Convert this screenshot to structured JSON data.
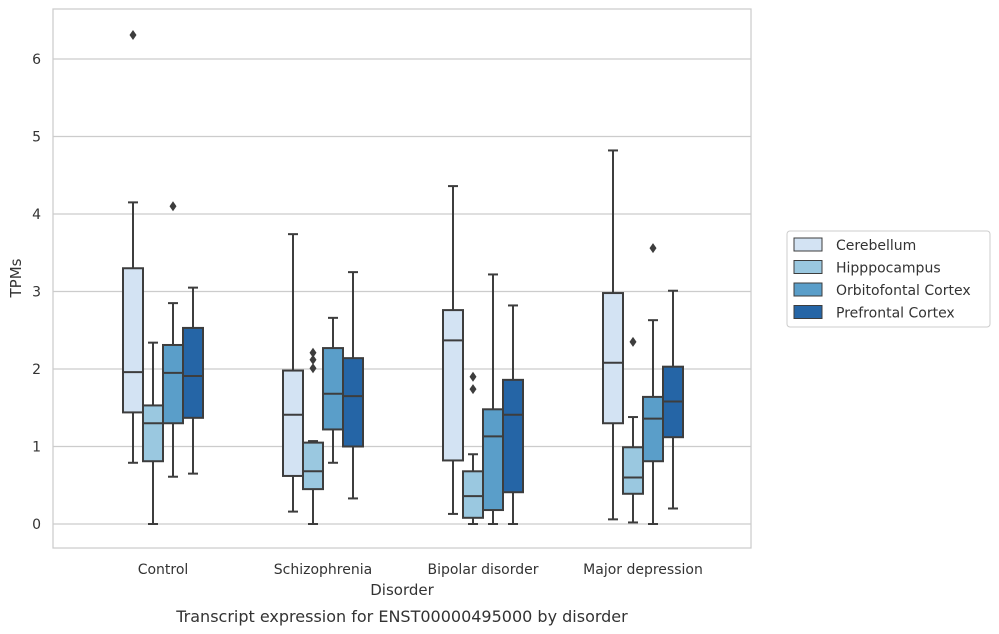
{
  "chart_data": {
    "type": "box",
    "title": "",
    "caption": "Transcript expression for ENST00000495000 by disorder",
    "xlabel": "Disorder",
    "ylabel": "TPMs",
    "ylim": [
      -0.3,
      6.6
    ],
    "yticks": [
      0,
      1,
      2,
      3,
      4,
      5,
      6
    ],
    "grid": "horizontal",
    "legend_position": "right",
    "categories": [
      "Control",
      "Schizophrenia",
      "Bipolar disorder",
      "Major depression"
    ],
    "series": [
      {
        "name": "Cerebellum",
        "color": "#d3e3f3",
        "boxes": [
          {
            "whislo": 0.79,
            "q1": 1.44,
            "med": 1.96,
            "q3": 3.3,
            "whishi": 4.15,
            "fliers": [
              6.31
            ]
          },
          {
            "whislo": 0.16,
            "q1": 0.62,
            "med": 1.41,
            "q3": 1.98,
            "whishi": 3.74,
            "fliers": []
          },
          {
            "whislo": 0.13,
            "q1": 0.82,
            "med": 2.37,
            "q3": 2.76,
            "whishi": 4.36,
            "fliers": []
          },
          {
            "whislo": 0.06,
            "q1": 1.3,
            "med": 2.08,
            "q3": 2.98,
            "whishi": 4.82,
            "fliers": []
          }
        ]
      },
      {
        "name": "Hipppocampus",
        "color": "#9ac8e0",
        "boxes": [
          {
            "whislo": 0.0,
            "q1": 0.81,
            "med": 1.3,
            "q3": 1.53,
            "whishi": 2.34,
            "fliers": []
          },
          {
            "whislo": 0.0,
            "q1": 0.45,
            "med": 0.68,
            "q3": 1.05,
            "whishi": 1.07,
            "fliers": [
              2.01,
              2.12,
              2.21
            ]
          },
          {
            "whislo": 0.0,
            "q1": 0.08,
            "med": 0.36,
            "q3": 0.68,
            "whishi": 0.9,
            "fliers": [
              1.74,
              1.9
            ]
          },
          {
            "whislo": 0.02,
            "q1": 0.39,
            "med": 0.6,
            "q3": 0.99,
            "whishi": 1.38,
            "fliers": [
              2.35
            ]
          }
        ]
      },
      {
        "name": "Orbitofontal Cortex",
        "color": "#5a9ec9",
        "boxes": [
          {
            "whislo": 0.61,
            "q1": 1.3,
            "med": 1.95,
            "q3": 2.31,
            "whishi": 2.85,
            "fliers": [
              4.1
            ]
          },
          {
            "whislo": 0.79,
            "q1": 1.22,
            "med": 1.68,
            "q3": 2.27,
            "whishi": 2.66,
            "fliers": []
          },
          {
            "whislo": 0.0,
            "q1": 0.18,
            "med": 1.13,
            "q3": 1.48,
            "whishi": 3.22,
            "fliers": []
          },
          {
            "whislo": 0.0,
            "q1": 0.81,
            "med": 1.36,
            "q3": 1.64,
            "whishi": 2.63,
            "fliers": [
              3.56
            ]
          }
        ]
      },
      {
        "name": "Prefrontal Cortex",
        "color": "#2565a6",
        "boxes": [
          {
            "whislo": 0.65,
            "q1": 1.37,
            "med": 1.91,
            "q3": 2.53,
            "whishi": 3.05,
            "fliers": []
          },
          {
            "whislo": 0.33,
            "q1": 1.0,
            "med": 1.65,
            "q3": 2.14,
            "whishi": 3.25,
            "fliers": []
          },
          {
            "whislo": 0.0,
            "q1": 0.41,
            "med": 1.41,
            "q3": 1.86,
            "whishi": 2.82,
            "fliers": []
          },
          {
            "whislo": 0.2,
            "q1": 1.12,
            "med": 1.58,
            "q3": 2.03,
            "whishi": 3.01,
            "fliers": []
          }
        ]
      }
    ]
  }
}
